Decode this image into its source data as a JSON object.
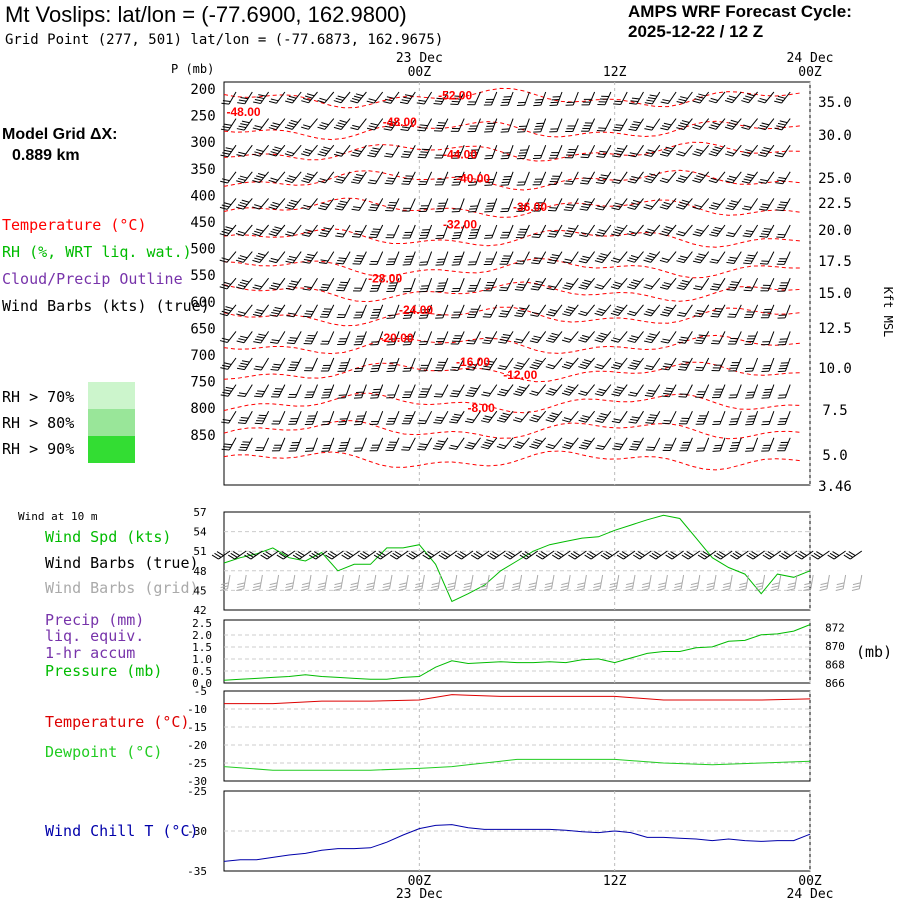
{
  "header": {
    "title": "Mt Voslips:  lat/lon = (-77.6900, 162.9800)",
    "subtitle": "Grid Point (277, 501) lat/lon = (-77.6873, 162.9675)",
    "cycle_line1": "AMPS WRF Forecast Cycle:",
    "cycle_line2": "2025-12-22 / 12  Z",
    "grid_label": "Model Grid ΔX:",
    "grid_value": "0.889 km"
  },
  "legend": {
    "temperature": "Temperature (°C)",
    "rh": "RH (%, WRT liq. wat.)",
    "cloud": "Cloud/Precip Outline",
    "wind": "Wind Barbs (kts) (true)",
    "rh70": "RH > 70%",
    "rh80": "RH > 80%",
    "rh90": "RH > 90%",
    "wind_10m": "Wind at 10 m",
    "wind_spd": "Wind Spd (kts)",
    "wind_barbs_true": "Wind Barbs (true)",
    "wind_barbs_grid": "Wind Barbs (grid)",
    "precip1": "Precip (mm)",
    "precip2": "liq. equiv.",
    "precip3": "1-hr accum",
    "pressure": "Pressure (mb)",
    "pressure_unit": "(mb)",
    "temp2": "Temperature (°C)",
    "dewpoint": "Dewpoint (°C)",
    "windchill": "Wind Chill T (°C)"
  },
  "colors": {
    "temperature": "#ff0000",
    "rh": "#00bb00",
    "cloud": "#7733aa",
    "wind": "#000000",
    "grid_barbs": "#aaaaaa",
    "rh70": "#ccf5cc",
    "rh80": "#99e699",
    "rh90": "#33dd33",
    "dewpoint": "#22cc22",
    "windchill": "#0000aa"
  },
  "chart_data": [
    {
      "type": "line",
      "name": "cross-section",
      "ylabel": "P (mb)",
      "right_label": "Kft MSL",
      "pressure_levels": [
        200,
        250,
        300,
        350,
        400,
        450,
        500,
        550,
        600,
        650,
        700,
        750,
        800,
        850
      ],
      "kft_ticks": [
        "35.0",
        "30.0",
        "25.0",
        "22.5",
        "20.0",
        "17.5",
        "15.0",
        "12.5",
        "10.0",
        "7.5",
        "5.0",
        "3.46"
      ],
      "time_ticks_top": [
        {
          "label": "00Z",
          "date": "23 Dec",
          "hour": 12
        },
        {
          "label": "12Z",
          "date": "",
          "hour": 24
        },
        {
          "label": "00Z",
          "date": "24 Dec",
          "hour": 36
        }
      ],
      "x_range_hours": [
        0,
        36
      ],
      "temperature_contours": [
        {
          "label": "-52.00",
          "hour": 14.2,
          "p": 212
        },
        {
          "label": "-48.00",
          "hour": 1.2,
          "p": 243
        },
        {
          "label": "-48.00",
          "hour": 10.8,
          "p": 262
        },
        {
          "label": "-44.00",
          "hour": 14.5,
          "p": 323
        },
        {
          "label": "-40.00",
          "hour": 15.3,
          "p": 368
        },
        {
          "label": "-36.00",
          "hour": 18.8,
          "p": 422
        },
        {
          "label": "-32.00",
          "hour": 14.5,
          "p": 455
        },
        {
          "label": "-28.00",
          "hour": 9.9,
          "p": 556
        },
        {
          "label": "-24.00",
          "hour": 11.8,
          "p": 615
        },
        {
          "label": "-20.00",
          "hour": 10.6,
          "p": 668
        },
        {
          "label": "-16.00",
          "hour": 15.3,
          "p": 713
        },
        {
          "label": "-12.00",
          "hour": 18.2,
          "p": 738
        },
        {
          "label": "-8.00",
          "hour": 15.8,
          "p": 800
        }
      ]
    },
    {
      "type": "line",
      "name": "wind-speed",
      "yticks": [
        42,
        45,
        48,
        51,
        54,
        57
      ],
      "ylim": [
        42,
        57
      ],
      "x_hours": [
        0,
        1,
        2,
        3,
        4,
        5,
        6,
        7,
        8,
        9,
        10,
        11,
        12,
        13,
        14,
        15,
        16,
        17,
        18,
        19,
        20,
        21,
        22,
        23,
        24,
        25,
        26,
        27,
        28,
        29,
        30,
        31,
        32,
        33,
        34,
        35,
        36
      ],
      "values": [
        49.2,
        50.0,
        50.6,
        51.5,
        50.0,
        49.5,
        50.8,
        48.0,
        49.0,
        49.0,
        51.5,
        51.5,
        52.0,
        49.0,
        43.3,
        44.5,
        45.8,
        48.0,
        49.5,
        51.0,
        52.0,
        52.5,
        53.0,
        53.2,
        54.2,
        55.0,
        55.8,
        56.5,
        56.0,
        53.0,
        50.0,
        48.5,
        47.5,
        44.5,
        47.5,
        47.0,
        48.0
      ]
    },
    {
      "type": "line",
      "name": "precip-pressure",
      "left_ticks": [
        "0.0",
        "0.5",
        "1.0",
        "1.5",
        "2.0",
        "2.5"
      ],
      "right_ticks": [
        "866",
        "868",
        "870",
        "872"
      ],
      "ylim": [
        866,
        872.8
      ],
      "x_hours": [
        0,
        1,
        2,
        3,
        4,
        5,
        6,
        7,
        8,
        9,
        10,
        11,
        12,
        13,
        14,
        15,
        16,
        17,
        18,
        19,
        20,
        21,
        22,
        23,
        24,
        25,
        26,
        27,
        28,
        29,
        30,
        31,
        32,
        33,
        34,
        35,
        36
      ],
      "pressure_values": [
        866.3,
        866.4,
        866.5,
        866.6,
        866.7,
        866.9,
        866.7,
        866.6,
        866.5,
        866.4,
        866.4,
        866.6,
        866.7,
        867.7,
        868.4,
        868.1,
        868.2,
        868.3,
        868.2,
        868.2,
        868.3,
        868.2,
        868.5,
        868.6,
        868.2,
        868.7,
        869.2,
        869.4,
        869.4,
        869.8,
        869.9,
        870.5,
        870.6,
        871.2,
        871.3,
        871.6,
        872.3
      ],
      "precip_values": [
        0,
        0,
        0,
        0,
        0,
        0,
        0,
        0,
        0,
        0,
        0,
        0,
        0,
        0,
        0,
        0,
        0,
        0,
        0,
        0,
        0,
        0,
        0,
        0,
        0,
        0,
        0,
        0,
        0,
        0,
        0,
        0,
        0,
        0,
        0,
        0,
        0
      ]
    },
    {
      "type": "line",
      "name": "temperature-dewpoint",
      "yticks": [
        -30,
        -25,
        -20,
        -15,
        -10,
        -5
      ],
      "ylim": [
        -30,
        -5
      ],
      "x_hours": [
        0,
        3,
        6,
        9,
        12,
        14,
        15,
        17,
        18,
        21,
        24,
        27,
        30,
        33,
        36
      ],
      "temperature_values": [
        -8.5,
        -8.5,
        -7.8,
        -7.8,
        -7.5,
        -6.0,
        -6.2,
        -6.5,
        -6.5,
        -6.5,
        -6.5,
        -7.5,
        -7.5,
        -7.5,
        -7.2
      ],
      "dewpoint_values": [
        -26.0,
        -27.0,
        -27.0,
        -27.0,
        -26.5,
        -26.0,
        -25.5,
        -24.5,
        -24.0,
        -24.0,
        -24.0,
        -25.0,
        -25.5,
        -25.0,
        -24.5
      ]
    },
    {
      "type": "line",
      "name": "wind-chill",
      "yticks": [
        -35,
        -30,
        -25
      ],
      "ylim": [
        -35,
        -25
      ],
      "x_hours": [
        0,
        1,
        2,
        3,
        4,
        5,
        6,
        7,
        8,
        9,
        10,
        11,
        12,
        13,
        14,
        15,
        16,
        17,
        18,
        19,
        20,
        21,
        22,
        23,
        24,
        25,
        26,
        27,
        28,
        29,
        30,
        31,
        32,
        33,
        34,
        35,
        36
      ],
      "values": [
        -33.8,
        -33.6,
        -33.6,
        -33.3,
        -33.0,
        -32.8,
        -32.4,
        -32.2,
        -32.2,
        -32.1,
        -31.4,
        -30.5,
        -29.7,
        -29.3,
        -29.2,
        -29.6,
        -29.8,
        -29.8,
        -29.8,
        -29.8,
        -29.8,
        -29.9,
        -30.1,
        -30.2,
        -30.0,
        -30.2,
        -30.8,
        -30.8,
        -30.9,
        -31.0,
        -31.2,
        -31.0,
        -31.2,
        -31.3,
        -31.2,
        -31.2,
        -30.4
      ],
      "bottom_ticks": [
        {
          "label": "00Z",
          "date": "23 Dec",
          "hour": 12
        },
        {
          "label": "12Z",
          "date": "",
          "hour": 24
        },
        {
          "label": "00Z",
          "date": "24 Dec",
          "hour": 36
        }
      ]
    }
  ]
}
